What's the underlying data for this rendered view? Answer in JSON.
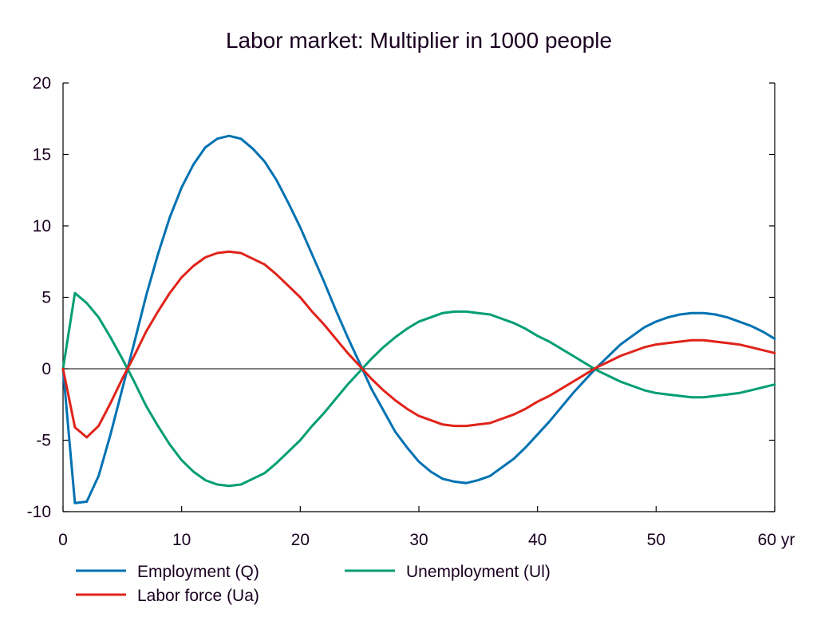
{
  "chart_data": {
    "type": "line",
    "title": "Labor market: Multiplier in 1000 people",
    "xlabel": "",
    "ylabel": "",
    "x_unit_suffix": "yr",
    "xlim": [
      0,
      60
    ],
    "ylim": [
      -10,
      20
    ],
    "x_ticks": [
      0,
      10,
      20,
      30,
      40,
      50,
      60
    ],
    "x_tick_labels": [
      "0",
      "10",
      "20",
      "30",
      "40",
      "50",
      "60 yr"
    ],
    "y_ticks": [
      -10,
      -5,
      0,
      5,
      10,
      15,
      20
    ],
    "y_tick_labels": [
      "-10",
      "-5",
      "0",
      "5",
      "10",
      "15",
      "20"
    ],
    "grid": false,
    "zero_line": true,
    "legend_position": "bottom",
    "x": [
      0,
      1,
      2,
      3,
      4,
      5,
      6,
      7,
      8,
      9,
      10,
      11,
      12,
      13,
      14,
      15,
      16,
      17,
      18,
      19,
      20,
      21,
      22,
      23,
      24,
      25,
      26,
      27,
      28,
      29,
      30,
      31,
      32,
      33,
      34,
      35,
      36,
      37,
      38,
      39,
      40,
      41,
      42,
      43,
      44,
      45,
      46,
      47,
      48,
      49,
      50,
      51,
      52,
      53,
      54,
      55,
      56,
      57,
      58,
      59,
      60
    ],
    "series": [
      {
        "name": "Employment (Q)",
        "color": "#0072b2",
        "values": [
          0,
          -9.4,
          -9.3,
          -7.5,
          -4.6,
          -1.4,
          1.8,
          5.1,
          8.0,
          10.6,
          12.7,
          14.3,
          15.5,
          16.1,
          16.3,
          16.1,
          15.4,
          14.5,
          13.2,
          11.6,
          9.9,
          8.0,
          6.1,
          4.1,
          2.2,
          0.4,
          -1.4,
          -2.9,
          -4.4,
          -5.5,
          -6.5,
          -7.2,
          -7.7,
          -7.9,
          -8.0,
          -7.8,
          -7.5,
          -6.9,
          -6.3,
          -5.5,
          -4.6,
          -3.7,
          -2.7,
          -1.7,
          -0.8,
          0.1,
          0.9,
          1.7,
          2.3,
          2.9,
          3.3,
          3.6,
          3.8,
          3.9,
          3.9,
          3.8,
          3.6,
          3.3,
          3.0,
          2.6,
          2.1
        ]
      },
      {
        "name": "Unemployment (Ul)",
        "color": "#009e73",
        "values": [
          0,
          5.3,
          4.6,
          3.6,
          2.2,
          0.7,
          -0.9,
          -2.6,
          -4.0,
          -5.3,
          -6.4,
          -7.2,
          -7.8,
          -8.1,
          -8.2,
          -8.1,
          -7.7,
          -7.3,
          -6.6,
          -5.8,
          -5.0,
          -4.0,
          -3.1,
          -2.1,
          -1.1,
          -0.2,
          0.7,
          1.5,
          2.2,
          2.8,
          3.3,
          3.6,
          3.9,
          4.0,
          4.0,
          3.9,
          3.8,
          3.5,
          3.2,
          2.8,
          2.3,
          1.9,
          1.4,
          0.9,
          0.4,
          -0.1,
          -0.5,
          -0.9,
          -1.2,
          -1.5,
          -1.7,
          -1.8,
          -1.9,
          -2.0,
          -2.0,
          -1.9,
          -1.8,
          -1.7,
          -1.5,
          -1.3,
          -1.1
        ]
      },
      {
        "name": "Labor force (Ua)",
        "color": "#e0231a",
        "values": [
          0,
          -4.1,
          -4.8,
          -4.0,
          -2.4,
          -0.7,
          0.9,
          2.6,
          4.0,
          5.3,
          6.4,
          7.2,
          7.8,
          8.1,
          8.2,
          8.1,
          7.7,
          7.3,
          6.6,
          5.8,
          5.0,
          4.0,
          3.1,
          2.1,
          1.1,
          0.2,
          -0.7,
          -1.5,
          -2.2,
          -2.8,
          -3.3,
          -3.6,
          -3.9,
          -4.0,
          -4.0,
          -3.9,
          -3.8,
          -3.5,
          -3.2,
          -2.8,
          -2.3,
          -1.9,
          -1.4,
          -0.9,
          -0.4,
          0.1,
          0.5,
          0.9,
          1.2,
          1.5,
          1.7,
          1.8,
          1.9,
          2.0,
          2.0,
          1.9,
          1.8,
          1.7,
          1.5,
          1.3,
          1.1
        ]
      }
    ],
    "legend": [
      {
        "label": "Employment (Q)",
        "series_index": 0
      },
      {
        "label": "Unemployment (Ul)",
        "series_index": 1
      },
      {
        "label": "Labor force (Ua)",
        "series_index": 2
      }
    ]
  }
}
